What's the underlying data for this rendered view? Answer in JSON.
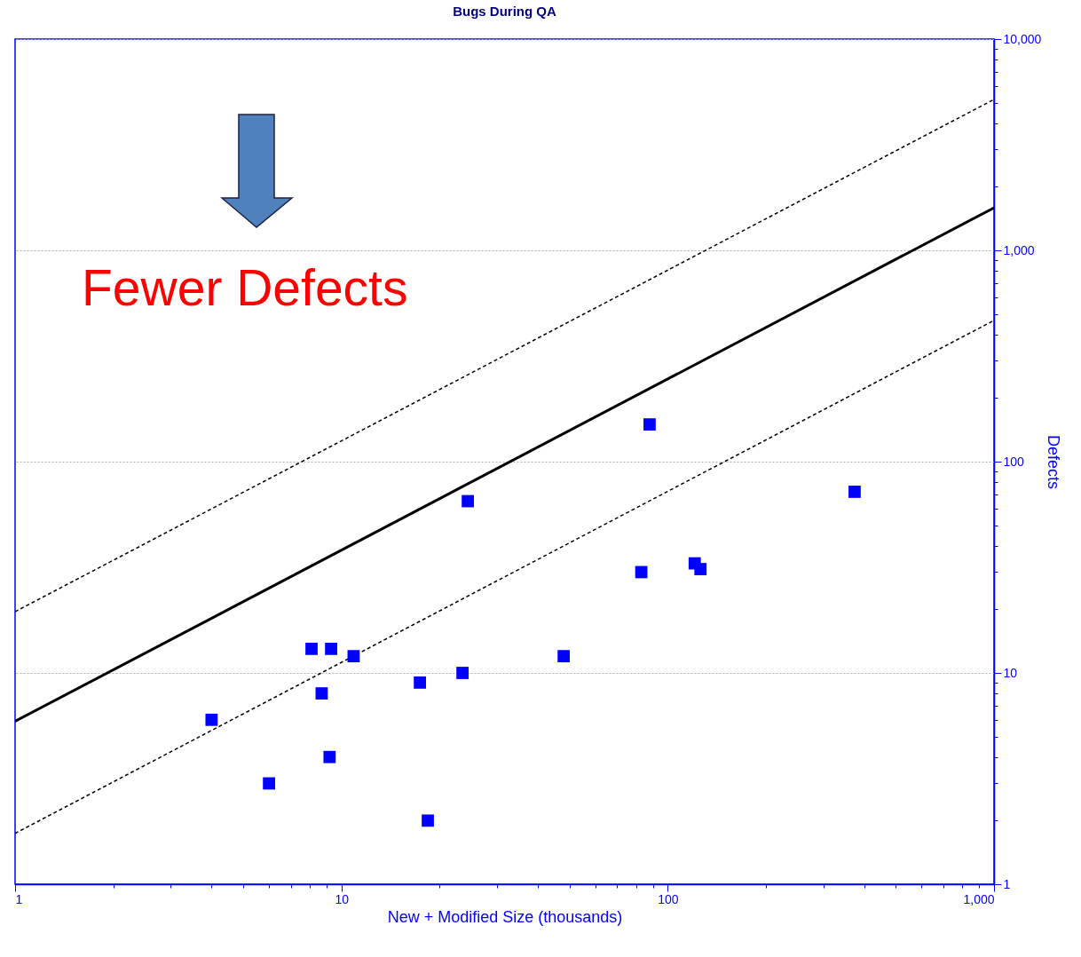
{
  "chart_data": {
    "type": "scatter",
    "title": "Bugs During QA",
    "xlabel": "New + Modified Size (thousands)",
    "ylabel": "Defects",
    "annotations": [
      "Fewer Defects"
    ],
    "log": "xy",
    "grid": "y",
    "xlim": [
      1,
      1000
    ],
    "ylim": [
      1,
      10000
    ],
    "xticks": [
      1,
      {
        "value": 2,
        "label": null
      },
      {
        "value": 3,
        "label": null
      },
      {
        "value": 4,
        "label": null
      },
      {
        "value": 5,
        "label": null
      },
      {
        "value": 6,
        "label": null
      },
      {
        "value": 7,
        "label": null
      },
      {
        "value": 8,
        "label": null
      },
      {
        "value": 9,
        "label": null
      },
      10,
      {
        "value": 20,
        "label": null
      },
      {
        "value": 30,
        "label": null
      },
      {
        "value": 40,
        "label": null
      },
      {
        "value": 50,
        "label": null
      },
      {
        "value": 60,
        "label": null
      },
      {
        "value": 70,
        "label": null
      },
      {
        "value": 80,
        "label": null
      },
      {
        "value": 90,
        "label": null
      },
      100,
      {
        "value": 200,
        "label": null
      },
      {
        "value": 300,
        "label": null
      },
      {
        "value": 400,
        "label": null
      },
      {
        "value": 500,
        "label": null
      },
      {
        "value": 600,
        "label": null
      },
      {
        "value": 700,
        "label": null
      },
      {
        "value": 800,
        "label": null
      },
      {
        "value": 900,
        "label": null
      },
      {
        "value": 1000,
        "label": "1,000"
      }
    ],
    "yticks": [
      1,
      {
        "value": 2,
        "label": null
      },
      {
        "value": 3,
        "label": null
      },
      {
        "value": 4,
        "label": null
      },
      {
        "value": 5,
        "label": null
      },
      {
        "value": 6,
        "label": null
      },
      {
        "value": 7,
        "label": null
      },
      {
        "value": 8,
        "label": null
      },
      {
        "value": 9,
        "label": null
      },
      10,
      {
        "value": 20,
        "label": null
      },
      {
        "value": 30,
        "label": null
      },
      {
        "value": 40,
        "label": null
      },
      {
        "value": 50,
        "label": null
      },
      {
        "value": 60,
        "label": null
      },
      {
        "value": 70,
        "label": null
      },
      {
        "value": 80,
        "label": null
      },
      {
        "value": 90,
        "label": null
      },
      100,
      {
        "value": 200,
        "label": null
      },
      {
        "value": 300,
        "label": null
      },
      {
        "value": 400,
        "label": null
      },
      {
        "value": 500,
        "label": null
      },
      {
        "value": 600,
        "label": null
      },
      {
        "value": 700,
        "label": null
      },
      {
        "value": 800,
        "label": null
      },
      {
        "value": 900,
        "label": null
      },
      {
        "value": 1000,
        "label": "1,000"
      },
      {
        "value": 2000,
        "label": null
      },
      {
        "value": 3000,
        "label": null
      },
      {
        "value": 4000,
        "label": null
      },
      {
        "value": 5000,
        "label": null
      },
      {
        "value": 6000,
        "label": null
      },
      {
        "value": 7000,
        "label": null
      },
      {
        "value": 8000,
        "label": null
      },
      {
        "value": 9000,
        "label": null
      },
      {
        "value": 10000,
        "label": "10,000"
      }
    ],
    "series": [
      {
        "type": "line",
        "color": "#000000",
        "line_style": "dashed",
        "x": [
          1,
          1000
        ],
        "values": [
          19.5,
          5180
        ]
      },
      {
        "type": "line",
        "color": "#000000",
        "line_style": "solid",
        "x": [
          1,
          1000
        ],
        "values": [
          5.9,
          1590
        ]
      },
      {
        "type": "line",
        "color": "#000000",
        "line_style": "dashed",
        "x": [
          1,
          1000
        ],
        "values": [
          1.74,
          466
        ]
      },
      {
        "marker": "square",
        "color": "#0000ff",
        "x": [
          4.0,
          6.0,
          8.1,
          8.7,
          9.2,
          9.3,
          10.9,
          17.4,
          18.4,
          23.5,
          24.4,
          48,
          83,
          88,
          121,
          126,
          374
        ],
        "values": [
          6,
          3,
          13,
          8,
          4,
          13,
          12,
          9,
          2,
          10,
          65,
          12,
          30,
          150,
          33,
          31,
          72
        ]
      }
    ]
  }
}
